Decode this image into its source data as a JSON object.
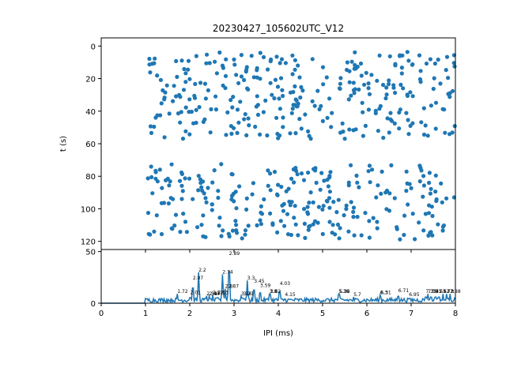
{
  "chart_data": [
    {
      "type": "scatter",
      "title": "20230427_105602UTC_V12",
      "xlabel": "",
      "ylabel": "t (s)",
      "xlim": [
        0,
        8
      ],
      "ylim": [
        125,
        -5
      ],
      "y_inverted": true,
      "yticks": [
        0,
        20,
        40,
        60,
        80,
        100,
        120
      ],
      "color": "#1f77b4",
      "note_points": "dense raster of spike IPI events; x in ms, y in seconds"
    },
    {
      "type": "line",
      "title": "",
      "xlabel": "IPI (ms)",
      "ylabel": "",
      "xlim": [
        0,
        8
      ],
      "ylim": [
        0,
        52
      ],
      "xticks": [
        0,
        1,
        2,
        3,
        4,
        5,
        6,
        7,
        8
      ],
      "yticks": [
        0,
        50
      ],
      "color": "#1f77b4",
      "peaks": [
        {
          "x": 1.72,
          "y": 9,
          "label": "1.72"
        },
        {
          "x": 2.01,
          "y": 8,
          "label": "2.01"
        },
        {
          "x": 2.07,
          "y": 22,
          "label": "2.07"
        },
        {
          "x": 2.2,
          "y": 30,
          "label": "2.2"
        },
        {
          "x": 2.38,
          "y": 7,
          "label": "2.38"
        },
        {
          "x": 2.44,
          "y": 7,
          "label": "2.44"
        },
        {
          "x": 2.52,
          "y": 8,
          "label": "2.52"
        },
        {
          "x": 2.63,
          "y": 8,
          "label": "2.63"
        },
        {
          "x": 2.74,
          "y": 28,
          "label": "2.74"
        },
        {
          "x": 2.8,
          "y": 14,
          "label": "2.8"
        },
        {
          "x": 2.87,
          "y": 14,
          "label": "2.87"
        },
        {
          "x": 2.89,
          "y": 46,
          "label": "2.89"
        },
        {
          "x": 3.16,
          "y": 7,
          "label": "3.16"
        },
        {
          "x": 3.21,
          "y": 7,
          "label": "3.21"
        },
        {
          "x": 3.3,
          "y": 22,
          "label": "3.3"
        },
        {
          "x": 3.45,
          "y": 19,
          "label": "3.45"
        },
        {
          "x": 3.59,
          "y": 15,
          "label": "3.59"
        },
        {
          "x": 3.8,
          "y": 9,
          "label": "3.8"
        },
        {
          "x": 3.82,
          "y": 9,
          "label": "3.82"
        },
        {
          "x": 4.03,
          "y": 17,
          "label": "4.03"
        },
        {
          "x": 4.15,
          "y": 6,
          "label": "4.15"
        },
        {
          "x": 5.36,
          "y": 9,
          "label": "5.36"
        },
        {
          "x": 5.38,
          "y": 9,
          "label": "5.38"
        },
        {
          "x": 5.7,
          "y": 6,
          "label": "5.7"
        },
        {
          "x": 6.3,
          "y": 8,
          "label": "6.3"
        },
        {
          "x": 6.31,
          "y": 8,
          "label": "6.31"
        },
        {
          "x": 6.71,
          "y": 10,
          "label": "6.71"
        },
        {
          "x": 6.95,
          "y": 6,
          "label": "6.95"
        },
        {
          "x": 7.33,
          "y": 9,
          "label": "7.33"
        },
        {
          "x": 7.38,
          "y": 9,
          "label": "7.38"
        },
        {
          "x": 7.45,
          "y": 9,
          "label": "7.45"
        },
        {
          "x": 7.55,
          "y": 9,
          "label": "7.55"
        },
        {
          "x": 7.63,
          "y": 9,
          "label": "7.63"
        },
        {
          "x": 7.72,
          "y": 9,
          "label": "7.72"
        },
        {
          "x": 7.8,
          "y": 9,
          "label": "7.8"
        },
        {
          "x": 7.88,
          "y": 9,
          "label": "7.88"
        }
      ]
    }
  ]
}
